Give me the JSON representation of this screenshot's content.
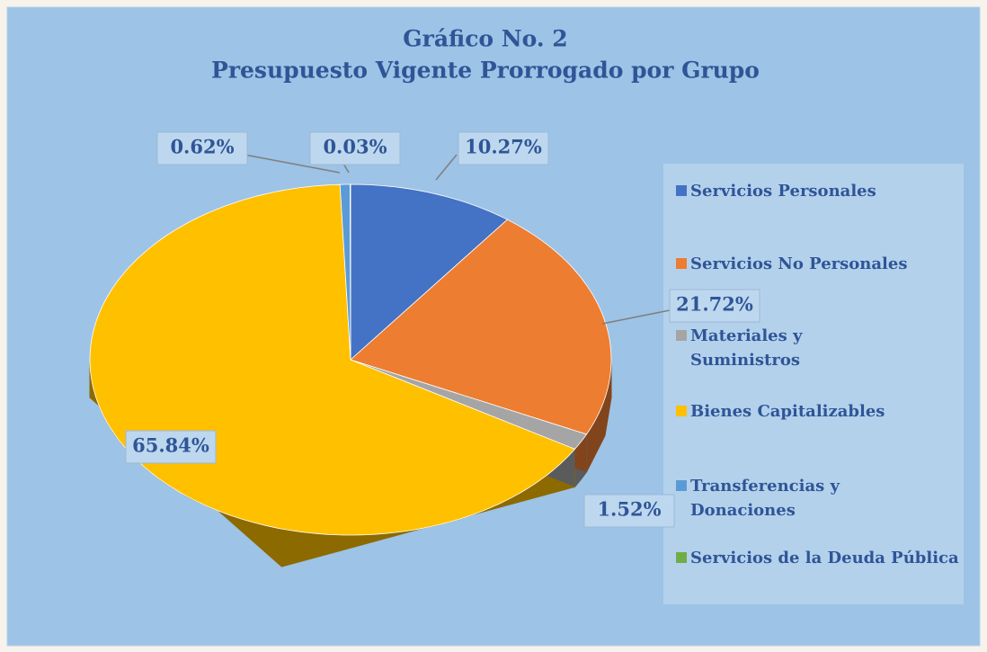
{
  "chart_data": {
    "type": "pie",
    "title": "Gráfico No. 2",
    "subtitle": "Presupuesto  Vigente  Prorrogado por Grupo",
    "categories": [
      "Servicios Personales",
      "Servicios No Personales",
      "Materiales y Suministros",
      "Bienes Capitalizables",
      "Transferencias y Donaciones",
      "Servicios de la Deuda Pública"
    ],
    "values": [
      10.27,
      21.72,
      1.52,
      65.84,
      0.62,
      0.03
    ],
    "value_labels": [
      "10.27%",
      "21.72%",
      "1.52%",
      "65.84%",
      "0.62%",
      "0.03%"
    ],
    "colors": [
      "#4472c4",
      "#ed7d31",
      "#a5a5a5",
      "#ffc000",
      "#5b9bd5",
      "#70ad47"
    ],
    "legend": "right"
  }
}
